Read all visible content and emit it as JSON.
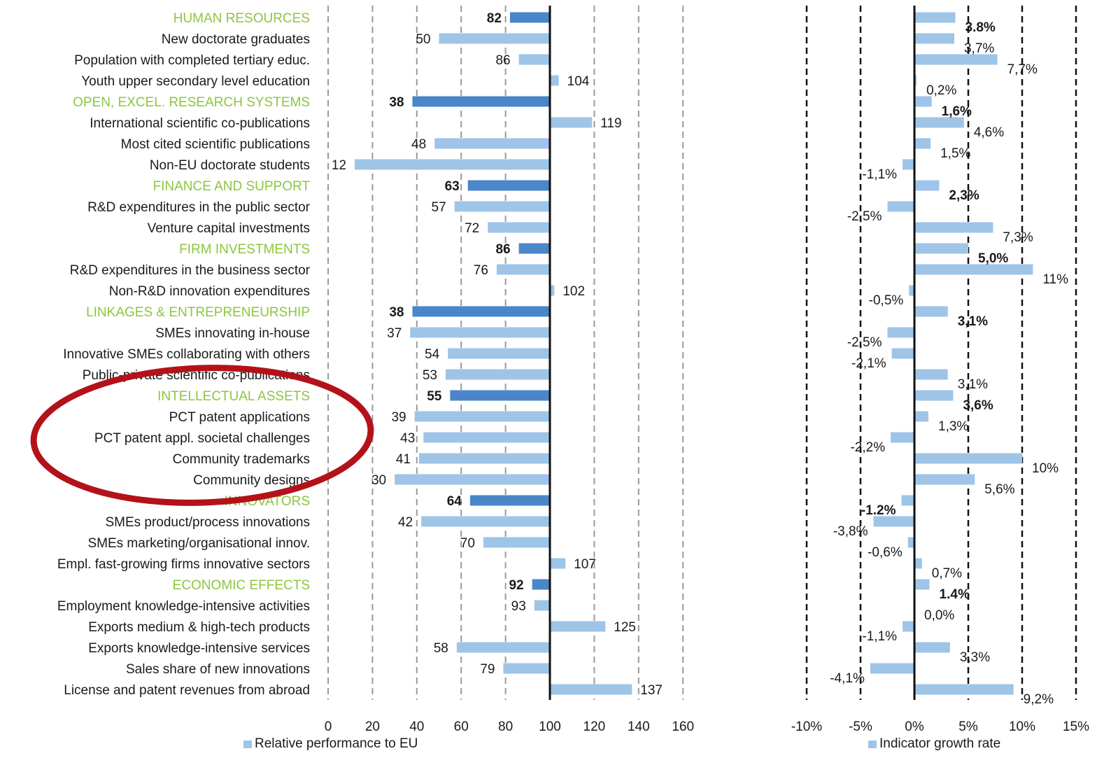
{
  "colors": {
    "group_label": "#8cc63f",
    "indicator_label": "#1a1a1a",
    "group_bar": "#4a86c8",
    "indicator_bar": "#9ec4e8",
    "annotation_ellipse": "#b3121a",
    "axis": "#111111",
    "grid_left": "#9a9a9a",
    "grid_right": "#111111"
  },
  "chart_data": [
    {
      "type": "bar",
      "orientation": "horizontal",
      "legend": "Relative performance to EU",
      "legend_position": "bottom",
      "xlim": [
        0,
        160
      ],
      "x_ticks": [
        "0",
        "20",
        "40",
        "60",
        "80",
        "100",
        "120",
        "140",
        "160"
      ],
      "baseline": 100,
      "grid": "dashed vertical",
      "rows": [
        {
          "label": "HUMAN RESOURCES",
          "group": true,
          "value": 82,
          "value_label": "82"
        },
        {
          "label": "New doctorate graduates",
          "group": false,
          "value": 50,
          "value_label": "50"
        },
        {
          "label": "Population with completed tertiary educ.",
          "group": false,
          "value": 86,
          "value_label": "86"
        },
        {
          "label": "Youth upper secondary level education",
          "group": false,
          "value": 104,
          "value_label": "104"
        },
        {
          "label": "OPEN, EXCEL. RESEARCH SYSTEMS",
          "group": true,
          "value": 38,
          "value_label": "38"
        },
        {
          "label": "International scientific co-publications",
          "group": false,
          "value": 119,
          "value_label": "119"
        },
        {
          "label": "Most cited scientific publications",
          "group": false,
          "value": 48,
          "value_label": "48"
        },
        {
          "label": "Non-EU doctorate students",
          "group": false,
          "value": 12,
          "value_label": "12"
        },
        {
          "label": "FINANCE AND SUPPORT",
          "group": true,
          "value": 63,
          "value_label": "63"
        },
        {
          "label": "R&D expenditures in the public sector",
          "group": false,
          "value": 57,
          "value_label": "57"
        },
        {
          "label": "Venture capital investments",
          "group": false,
          "value": 72,
          "value_label": "72"
        },
        {
          "label": "FIRM INVESTMENTS",
          "group": true,
          "value": 86,
          "value_label": "86"
        },
        {
          "label": "R&D expenditures in the business sector",
          "group": false,
          "value": 76,
          "value_label": "76"
        },
        {
          "label": "Non-R&D innovation expenditures",
          "group": false,
          "value": 102,
          "value_label": "102"
        },
        {
          "label": "LINKAGES & ENTREPRENEURSHIP",
          "group": true,
          "value": 38,
          "value_label": "38"
        },
        {
          "label": "SMEs innovating in-house",
          "group": false,
          "value": 37,
          "value_label": "37"
        },
        {
          "label": "Innovative SMEs collaborating with others",
          "group": false,
          "value": 54,
          "value_label": "54"
        },
        {
          "label": "Public-private scientific co-publications",
          "group": false,
          "value": 53,
          "value_label": "53"
        },
        {
          "label": "INTELLECTUAL ASSETS",
          "group": true,
          "value": 55,
          "value_label": "55"
        },
        {
          "label": "PCT patent applications",
          "group": false,
          "value": 39,
          "value_label": "39"
        },
        {
          "label": "PCT patent appl. societal challenges",
          "group": false,
          "value": 43,
          "value_label": "43"
        },
        {
          "label": "Community trademarks",
          "group": false,
          "value": 41,
          "value_label": "41"
        },
        {
          "label": "Community designs",
          "group": false,
          "value": 30,
          "value_label": "30"
        },
        {
          "label": "INNOVATORS",
          "group": true,
          "value": 64,
          "value_label": "64"
        },
        {
          "label": "SMEs product/process innovations",
          "group": false,
          "value": 42,
          "value_label": "42"
        },
        {
          "label": "SMEs marketing/organisational innov.",
          "group": false,
          "value": 70,
          "value_label": "70"
        },
        {
          "label": "Empl. fast-growing firms innovative sectors",
          "group": false,
          "value": 107,
          "value_label": "107"
        },
        {
          "label": "ECONOMIC EFFECTS",
          "group": true,
          "value": 92,
          "value_label": "92"
        },
        {
          "label": "Employment knowledge-intensive activities",
          "group": false,
          "value": 93,
          "value_label": "93"
        },
        {
          "label": "Exports medium & high-tech products",
          "group": false,
          "value": 125,
          "value_label": "125"
        },
        {
          "label": "Exports knowledge-intensive services",
          "group": false,
          "value": 58,
          "value_label": "58"
        },
        {
          "label": "Sales share of new innovations",
          "group": false,
          "value": 79,
          "value_label": "79"
        },
        {
          "label": "License and patent revenues from abroad",
          "group": false,
          "value": 137,
          "value_label": "137"
        }
      ]
    },
    {
      "type": "bar",
      "orientation": "horizontal",
      "legend": "Indicator growth rate",
      "legend_position": "bottom",
      "xlim": [
        -10,
        15
      ],
      "x_ticks": [
        "-10%",
        "-5%",
        "0%",
        "5%",
        "10%",
        "15%"
      ],
      "baseline": 0,
      "grid": "dashed vertical",
      "rows": [
        {
          "value": 3.8,
          "value_label": "3.8%",
          "bold": true
        },
        {
          "value": 3.7,
          "value_label": "3,7%",
          "bold": false
        },
        {
          "value": 7.7,
          "value_label": "7,7%",
          "bold": false
        },
        {
          "value": 0.2,
          "value_label": "0,2%",
          "bold": false
        },
        {
          "value": 1.6,
          "value_label": "1,6%",
          "bold": true
        },
        {
          "value": 4.6,
          "value_label": "4,6%",
          "bold": false
        },
        {
          "value": 1.5,
          "value_label": "1,5%",
          "bold": false
        },
        {
          "value": -1.1,
          "value_label": "-1,1%",
          "bold": false
        },
        {
          "value": 2.3,
          "value_label": "2,3%",
          "bold": true
        },
        {
          "value": -2.5,
          "value_label": "-2,5%",
          "bold": false
        },
        {
          "value": 7.3,
          "value_label": "7,3%",
          "bold": false
        },
        {
          "value": 5.0,
          "value_label": "5,0%",
          "bold": true
        },
        {
          "value": 11,
          "value_label": "11%",
          "bold": false
        },
        {
          "value": -0.5,
          "value_label": "-0,5%",
          "bold": false
        },
        {
          "value": 3.1,
          "value_label": "3,1%",
          "bold": true
        },
        {
          "value": -2.5,
          "value_label": "-2,5%",
          "bold": false
        },
        {
          "value": -2.1,
          "value_label": "-2,1%",
          "bold": false
        },
        {
          "value": 3.1,
          "value_label": "3,1%",
          "bold": false
        },
        {
          "value": 3.6,
          "value_label": "3,6%",
          "bold": true
        },
        {
          "value": 1.3,
          "value_label": "1,3%",
          "bold": false
        },
        {
          "value": -2.2,
          "value_label": "-2,2%",
          "bold": false
        },
        {
          "value": 10,
          "value_label": "10%",
          "bold": false
        },
        {
          "value": 5.6,
          "value_label": "5,6%",
          "bold": false
        },
        {
          "value": -1.2,
          "value_label": "-1.2%",
          "bold": true
        },
        {
          "value": -3.8,
          "value_label": "-3,8%",
          "bold": false
        },
        {
          "value": -0.6,
          "value_label": "-0,6%",
          "bold": false
        },
        {
          "value": 0.7,
          "value_label": "0,7%",
          "bold": false
        },
        {
          "value": 1.4,
          "value_label": "1.4%",
          "bold": true
        },
        {
          "value": 0.0,
          "value_label": "0,0%",
          "bold": false
        },
        {
          "value": -1.1,
          "value_label": "-1,1%",
          "bold": false
        },
        {
          "value": 3.3,
          "value_label": "3,3%",
          "bold": false
        },
        {
          "value": -4.1,
          "value_label": "-4,1%",
          "bold": false
        },
        {
          "value": 9.2,
          "value_label": "9,2%",
          "bold": false
        }
      ]
    }
  ]
}
